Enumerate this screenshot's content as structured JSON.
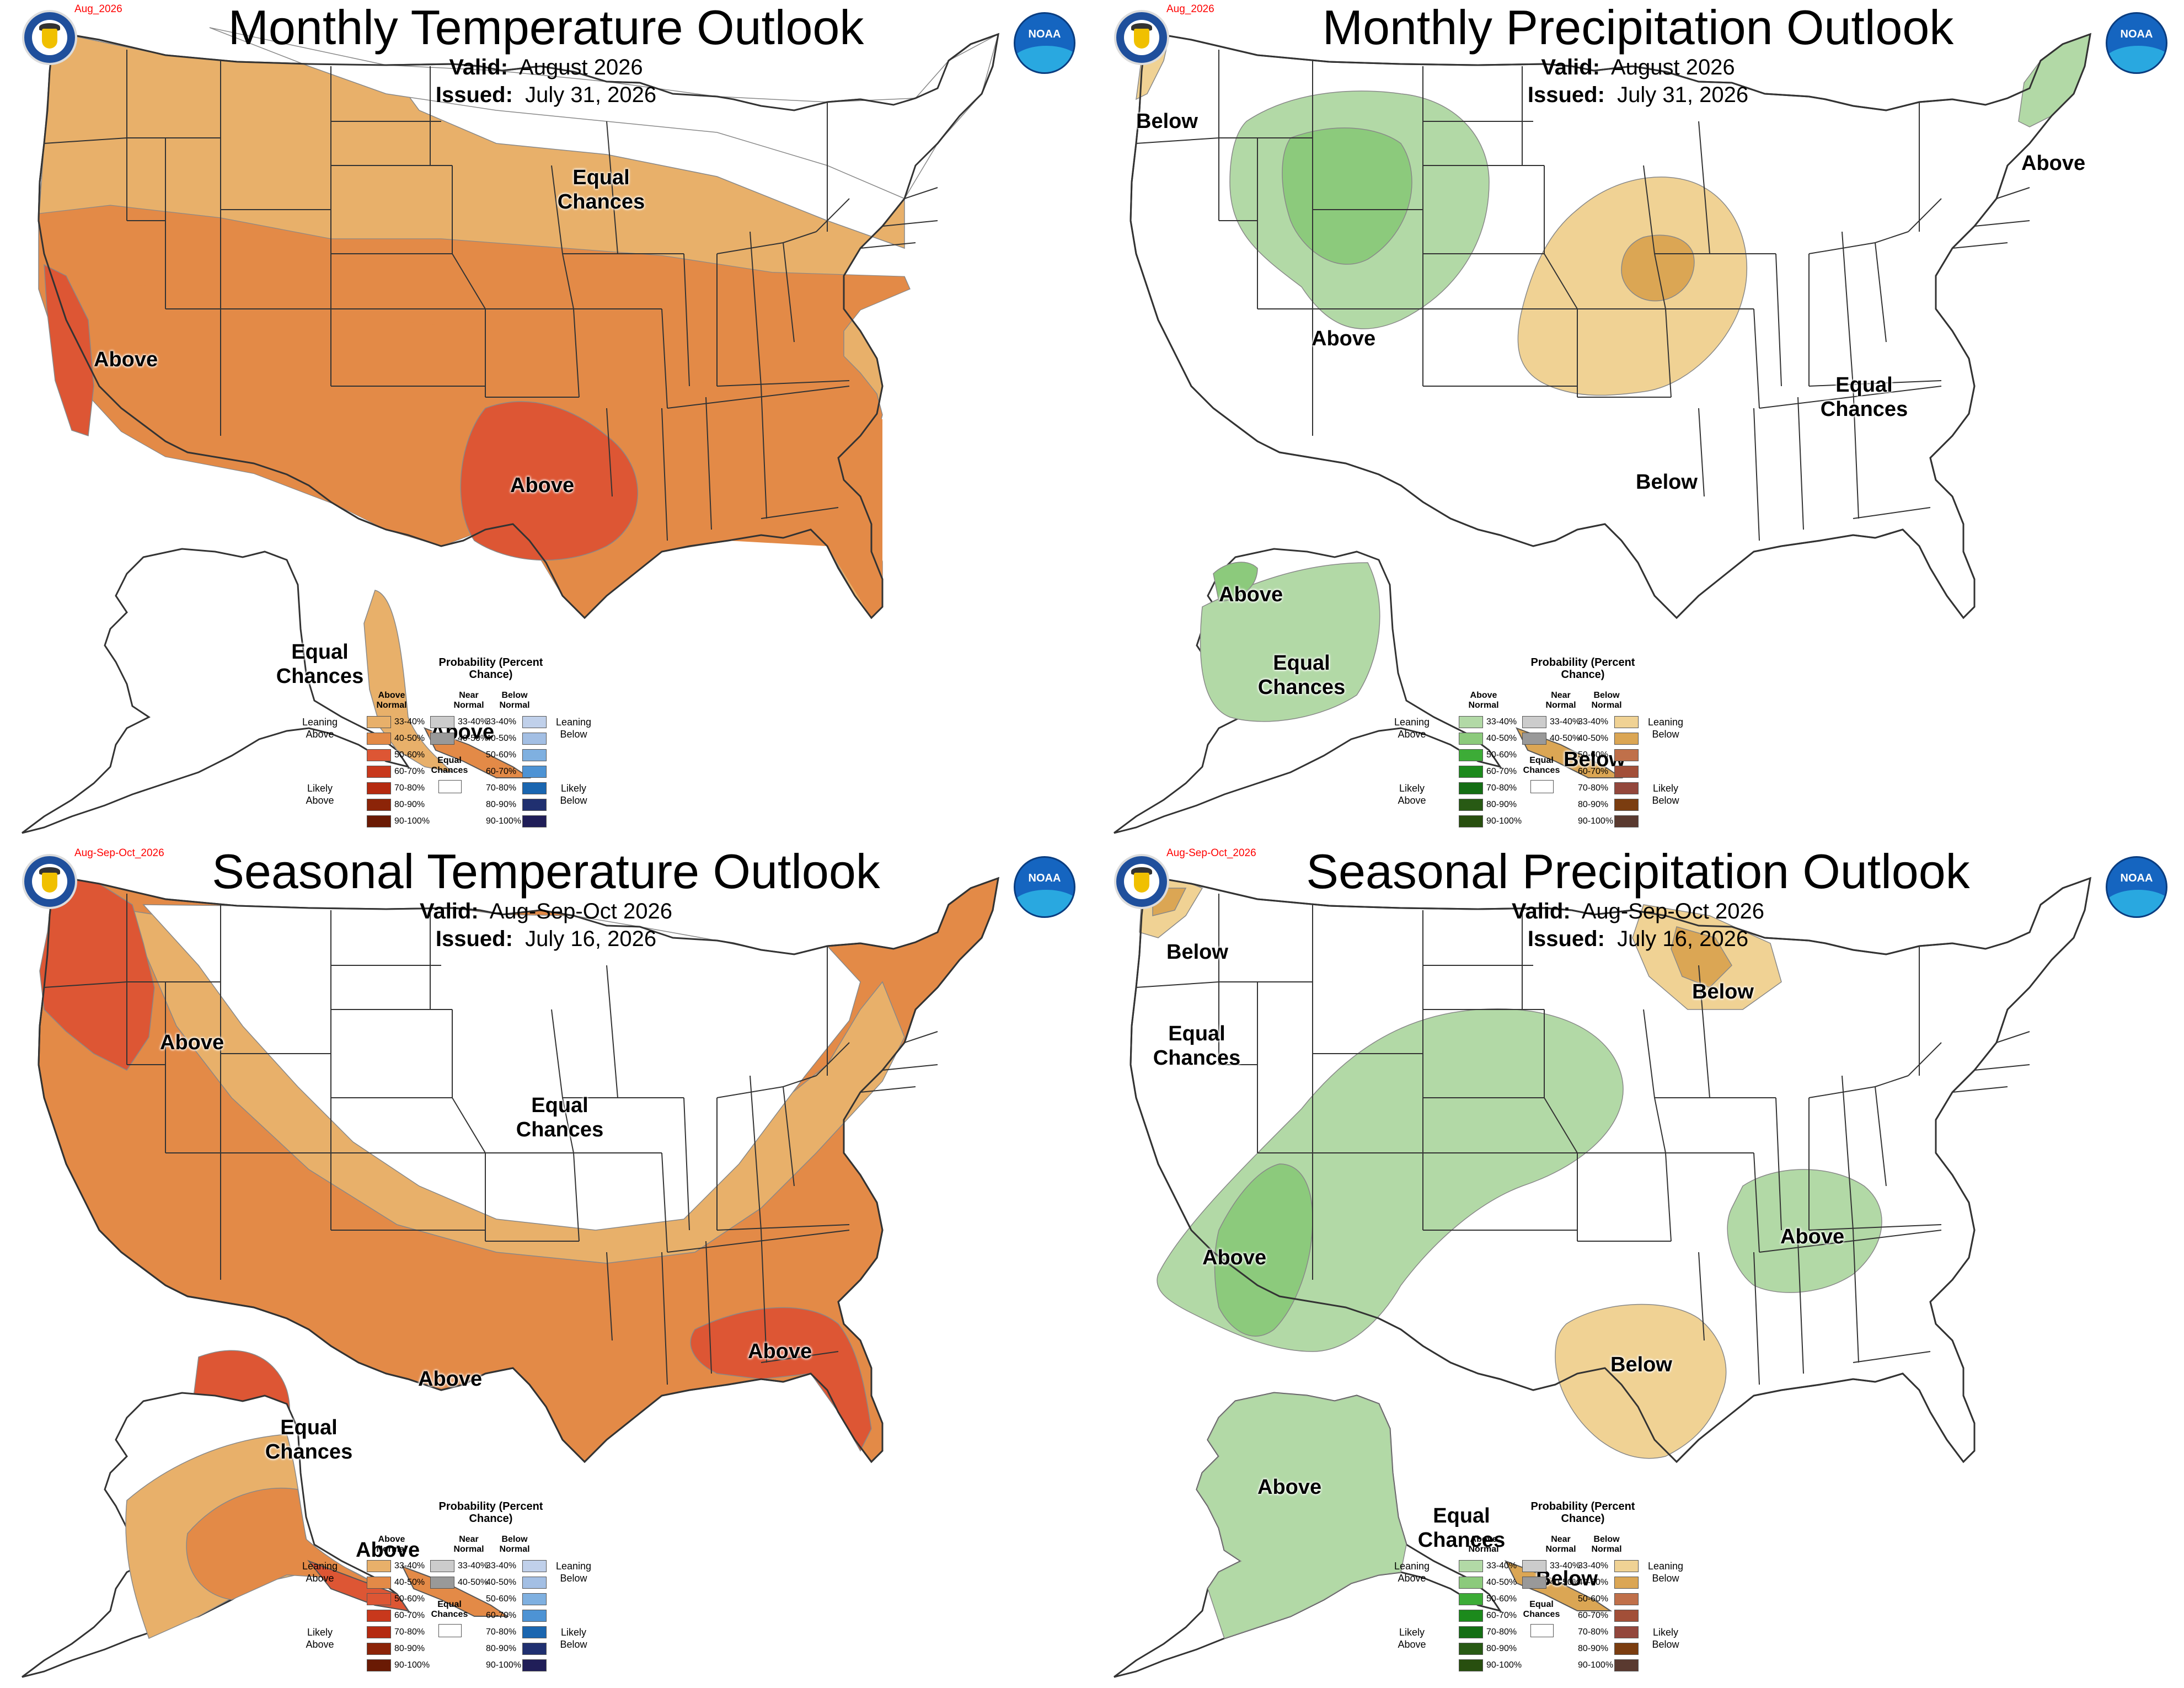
{
  "colors": {
    "temp_above_33_40": "#e8b06a",
    "temp_above_40_50": "#e38a47",
    "temp_above_50_60": "#dd5634",
    "temp_above_60_70": "#c8381c",
    "temp_above_70_80": "#b52a10",
    "temp_above_80_90": "#8c2408",
    "temp_above_90_100": "#6a1a04",
    "near_33_40": "#cccccc",
    "near_40_50": "#999999",
    "cold_33_40": "#c0d0ea",
    "cold_40_50": "#a3bfe4",
    "cold_50_60": "#7fb0e0",
    "cold_60_70": "#4d93d4",
    "cold_70_80": "#1a66b0",
    "cold_80_90": "#203070",
    "cold_90_100": "#201e58",
    "wet_33_40": "#b2d9a6",
    "wet_40_50": "#8cca7c",
    "wet_50_60": "#3dac37",
    "wet_60_70": "#1c8a1c",
    "wet_70_80": "#146e14",
    "wet_80_90": "#285a14",
    "wet_90_100": "#284f0f",
    "dry_33_40": "#f0d294",
    "dry_40_50": "#dba654",
    "dry_50_60": "#c0704a",
    "dry_60_70": "#a24f38",
    "dry_70_80": "#93473c",
    "dry_80_90": "#7b3d10",
    "dry_90_100": "#5a3a30"
  },
  "panels": {
    "monthly_temp": {
      "tag": "Aug_2026",
      "title": "Monthly Temperature Outlook",
      "valid_label": "Valid:",
      "valid_value": "August 2026",
      "issued_label": "Issued:",
      "issued_value": "July 31, 2026",
      "labels": {
        "equal_chances": "Equal Chances",
        "above_west": "Above",
        "above_south": "Above",
        "alaska_equal": "Equal Chances",
        "alaska_above": "Above"
      }
    },
    "monthly_precip": {
      "tag": "Aug_2026",
      "title": "Monthly Precipitation Outlook",
      "valid_label": "Valid:",
      "valid_value": "August 2026",
      "issued_label": "Issued:",
      "issued_value": "July 31, 2026",
      "labels": {
        "below_nw": "Below",
        "above_ne": "Above",
        "above_west": "Above",
        "equal_chances": "Equal Chances",
        "below_south": "Below",
        "alaska_above": "Above",
        "alaska_equal": "Equal Chances",
        "alaska_below": "Below"
      }
    },
    "seasonal_temp": {
      "tag": "Aug-Sep-Oct_2026",
      "title": "Seasonal Temperature Outlook",
      "valid_label": "Valid:",
      "valid_value": "Aug-Sep-Oct 2026",
      "issued_label": "Issued:",
      "issued_value": "July 16, 2026",
      "labels": {
        "above_nw": "Above",
        "equal_chances": "Equal Chances",
        "above_texas": "Above",
        "above_se": "Above",
        "alaska_equal": "Equal Chances",
        "alaska_above": "Above"
      }
    },
    "seasonal_precip": {
      "tag": "Aug-Sep-Oct_2026",
      "title": "Seasonal Precipitation Outlook",
      "valid_label": "Valid:",
      "valid_value": "Aug-Sep-Oct 2026",
      "issued_label": "Issued:",
      "issued_value": "July 16, 2026",
      "labels": {
        "below_nw": "Below",
        "equal_chances": "Equal Chances",
        "below_glakes": "Below",
        "above_west": "Above",
        "above_ohio": "Above",
        "below_texas": "Below",
        "alaska_above": "Above",
        "alaska_equal": "Equal Chances",
        "alaska_below": "Below"
      }
    }
  },
  "legend": {
    "title": "Probability (Percent Chance)",
    "above_normal": "Above Normal",
    "near_normal": "Near Normal",
    "below_normal": "Below Normal",
    "ranges": [
      "33-40%",
      "40-50%",
      "50-60%",
      "60-70%",
      "70-80%",
      "80-90%",
      "90-100%"
    ],
    "near_ranges": [
      "33-40%",
      "40-50%"
    ],
    "leaning_above": "Leaning Above",
    "likely_above": "Likely Above",
    "leaning_below": "Leaning Below",
    "likely_below": "Likely Below",
    "equal_chances": "Equal Chances"
  }
}
